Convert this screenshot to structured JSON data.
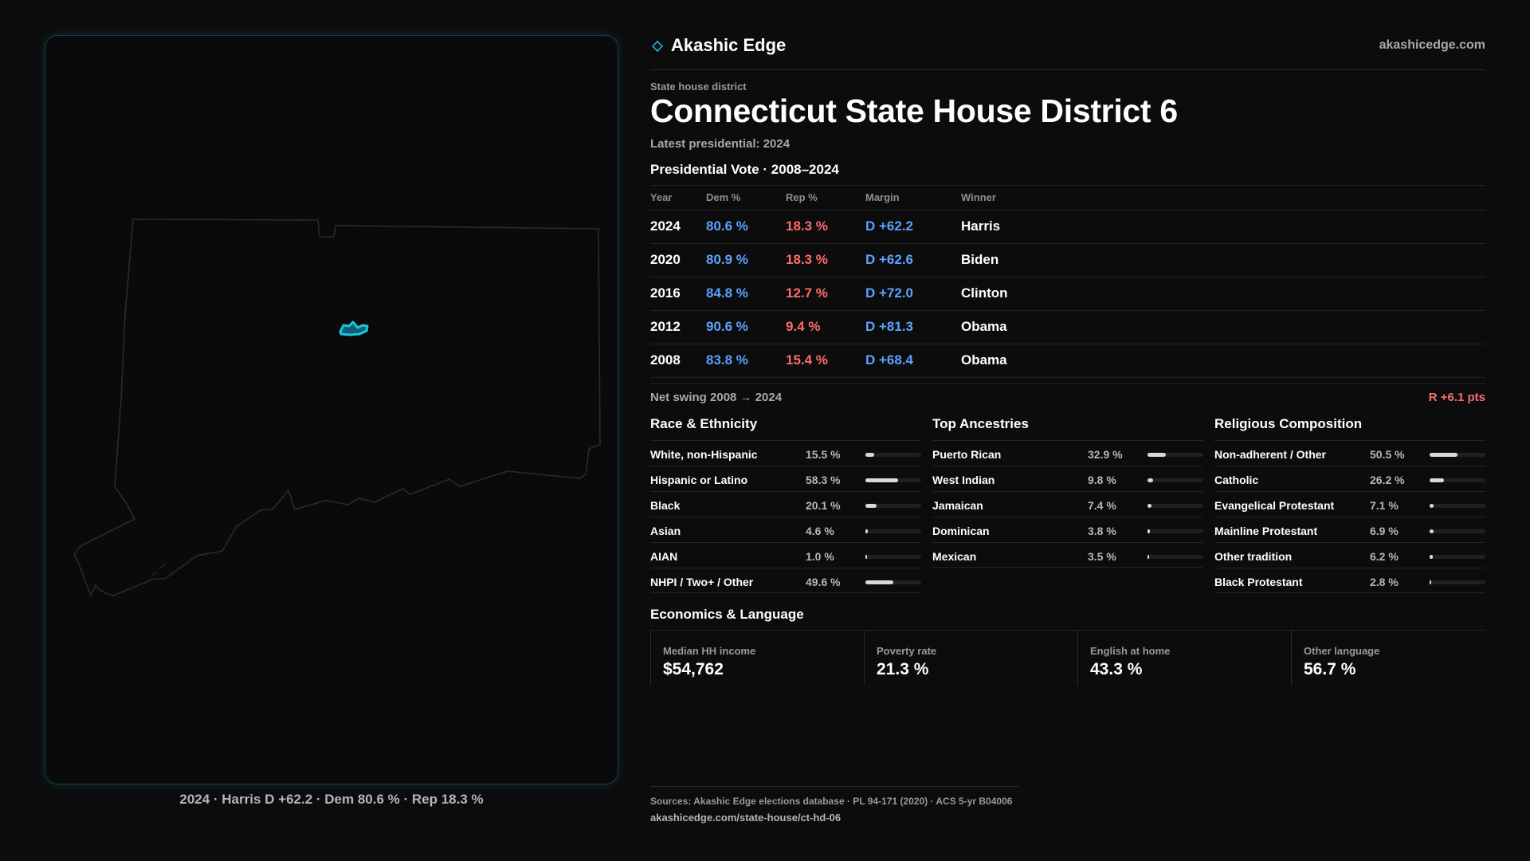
{
  "colors": {
    "dem": "#5ea2ff",
    "rep": "#ff6b6b",
    "accent": "#17c6e0",
    "background": "#0c0c0d"
  },
  "header": {
    "brand": "Akashic Edge",
    "brand_icon": "diamond-icon",
    "site": "akashicedge.com"
  },
  "district": {
    "kicker": "State house district",
    "title": "Connecticut State House District 6",
    "latest": "Latest presidential: 2024"
  },
  "map": {
    "caption": "2024 · Harris D +62.2 · Dem 80.6 % · Rep 18.3 %"
  },
  "presidential": {
    "heading": "Presidential Vote · 2008–2024",
    "columns": [
      "Year",
      "Dem %",
      "Rep %",
      "Margin",
      "Winner"
    ],
    "rows": [
      {
        "year": "2024",
        "dem": "80.6 %",
        "rep": "18.3 %",
        "margin": "D +62.2",
        "winner": "Harris"
      },
      {
        "year": "2020",
        "dem": "80.9 %",
        "rep": "18.3 %",
        "margin": "D +62.6",
        "winner": "Biden"
      },
      {
        "year": "2016",
        "dem": "84.8 %",
        "rep": "12.7 %",
        "margin": "D +72.0",
        "winner": "Clinton"
      },
      {
        "year": "2012",
        "dem": "90.6 %",
        "rep": "9.4 %",
        "margin": "D +81.3",
        "winner": "Obama"
      },
      {
        "year": "2008",
        "dem": "83.8 %",
        "rep": "15.4 %",
        "margin": "D +68.4",
        "winner": "Obama"
      }
    ],
    "swing_label": "Net swing 2008 → 2024",
    "swing_value": "R +6.1 pts"
  },
  "race": {
    "heading": "Race & Ethnicity",
    "items": [
      {
        "label": "White, non-Hispanic",
        "pct": "15.5 %",
        "value": 15.5
      },
      {
        "label": "Hispanic or Latino",
        "pct": "58.3 %",
        "value": 58.3
      },
      {
        "label": "Black",
        "pct": "20.1 %",
        "value": 20.1
      },
      {
        "label": "Asian",
        "pct": "4.6 %",
        "value": 4.6
      },
      {
        "label": "AIAN",
        "pct": "1.0 %",
        "value": 1.0
      },
      {
        "label": "NHPI / Two+ / Other",
        "pct": "49.6 %",
        "value": 49.6
      }
    ]
  },
  "ancestry": {
    "heading": "Top Ancestries",
    "items": [
      {
        "label": "Puerto Rican",
        "pct": "32.9 %",
        "value": 32.9
      },
      {
        "label": "West Indian",
        "pct": "9.8 %",
        "value": 9.8
      },
      {
        "label": "Jamaican",
        "pct": "7.4 %",
        "value": 7.4
      },
      {
        "label": "Dominican",
        "pct": "3.8 %",
        "value": 3.8
      },
      {
        "label": "Mexican",
        "pct": "3.5 %",
        "value": 3.5
      }
    ]
  },
  "religion": {
    "heading": "Religious Composition",
    "items": [
      {
        "label": "Non-adherent / Other",
        "pct": "50.5 %",
        "value": 50.5
      },
      {
        "label": "Catholic",
        "pct": "26.2 %",
        "value": 26.2
      },
      {
        "label": "Evangelical Protestant",
        "pct": "7.1 %",
        "value": 7.1
      },
      {
        "label": "Mainline Protestant",
        "pct": "6.9 %",
        "value": 6.9
      },
      {
        "label": "Other tradition",
        "pct": "6.2 %",
        "value": 6.2
      },
      {
        "label": "Black Protestant",
        "pct": "2.8 %",
        "value": 2.8
      }
    ]
  },
  "economics": {
    "heading": "Economics & Language",
    "items": [
      {
        "label": "Median HH income",
        "value": "$54,762"
      },
      {
        "label": "Poverty rate",
        "value": "21.3 %"
      },
      {
        "label": "English at home",
        "value": "43.3 %"
      },
      {
        "label": "Other language",
        "value": "56.7 %"
      }
    ]
  },
  "footer": {
    "sources": "Sources: Akashic Edge elections database · PL 94-171 (2020) · ACS 5-yr B04006",
    "url": "akashicedge.com/state-house/ct-hd-06"
  }
}
